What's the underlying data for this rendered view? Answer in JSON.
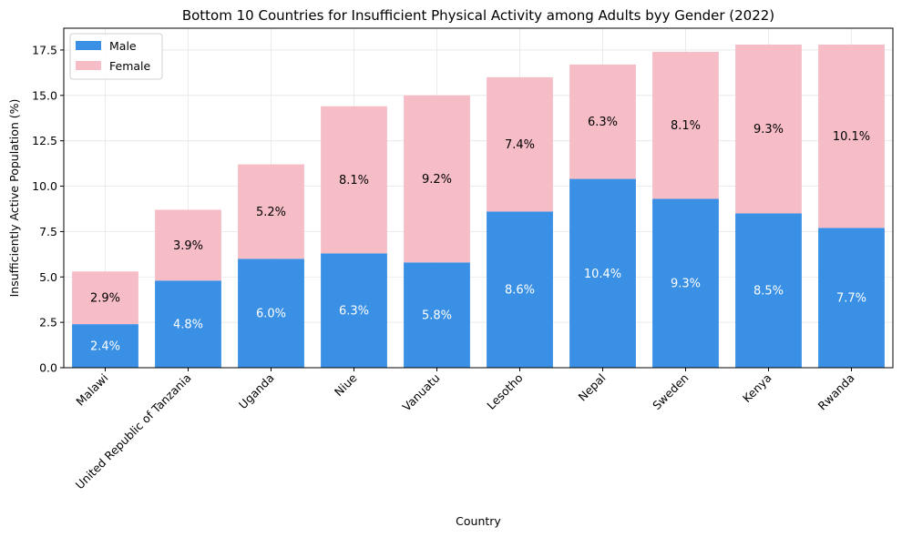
{
  "chart_data": {
    "type": "bar",
    "stacked": true,
    "title": "Bottom 10 Countries for Insufficient Physical Activity among Adults byy Gender (2022)",
    "xlabel": "Country",
    "ylabel": "Insufficiently Active Population (%)",
    "ylim": [
      0,
      18.7
    ],
    "yticks": [
      "0.0",
      "2.5",
      "5.0",
      "7.5",
      "10.0",
      "12.5",
      "15.0",
      "17.5"
    ],
    "grid": true,
    "legend_position": "top-left",
    "categories": [
      "Malawi",
      "United Republic of Tanzania",
      "Uganda",
      "Niue",
      "Vanuatu",
      "Lesotho",
      "Nepal",
      "Sweden",
      "Kenya",
      "Rwanda"
    ],
    "series": [
      {
        "name": "Male",
        "color": "#3a90e5",
        "values": [
          2.4,
          4.8,
          6.0,
          6.3,
          5.8,
          8.6,
          10.4,
          9.3,
          8.5,
          7.7
        ],
        "labels": [
          "2.4%",
          "4.8%",
          "6.0%",
          "6.3%",
          "5.8%",
          "8.6%",
          "10.4%",
          "9.3%",
          "8.5%",
          "7.7%"
        ]
      },
      {
        "name": "Female",
        "color": "#f6bdc7",
        "values": [
          2.9,
          3.9,
          5.2,
          8.1,
          9.2,
          7.4,
          6.3,
          8.1,
          9.3,
          10.1
        ],
        "labels": [
          "2.9%",
          "3.9%",
          "5.2%",
          "8.1%",
          "9.2%",
          "7.4%",
          "6.3%",
          "8.1%",
          "9.3%",
          "10.1%"
        ]
      }
    ]
  }
}
